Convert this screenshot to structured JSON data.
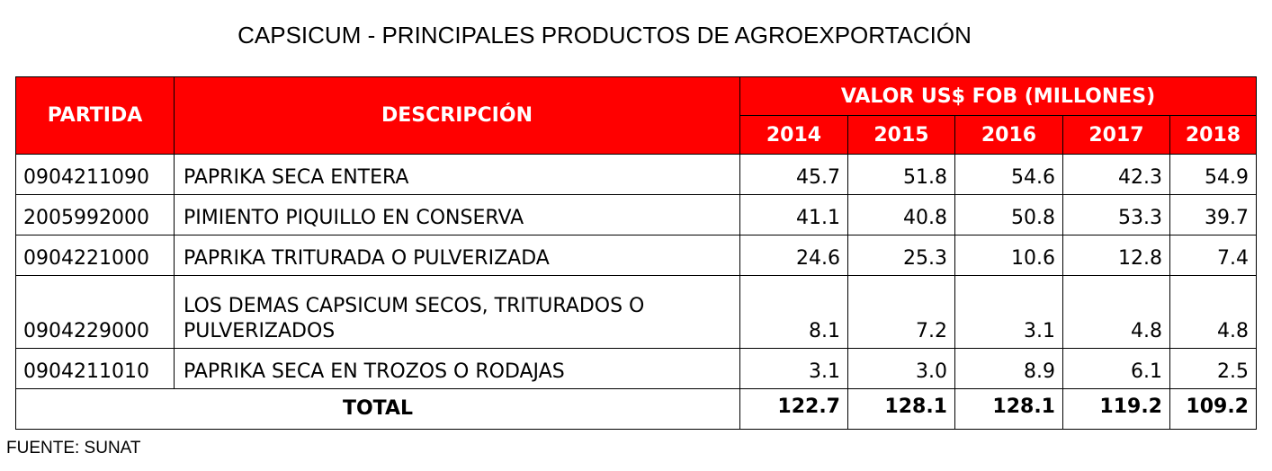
{
  "title": "CAPSICUM - PRINCIPALES PRODUCTOS DE AGROEXPORTACIÓN",
  "table": {
    "header_partida": "PARTIDA",
    "header_descripcion": "DESCRIPCIÓN",
    "header_valor": "VALOR US$ FOB (MILLONES)",
    "years": [
      "2014",
      "2015",
      "2016",
      "2017",
      "2018"
    ],
    "rows": [
      {
        "partida": "0904211090",
        "descripcion": "PAPRIKA SECA ENTERA",
        "values": [
          "45.7",
          "51.8",
          "54.6",
          "42.3",
          "54.9"
        ]
      },
      {
        "partida": "2005992000",
        "descripcion": "PIMIENTO PIQUILLO EN CONSERVA",
        "values": [
          "41.1",
          "40.8",
          "50.8",
          "53.3",
          "39.7"
        ]
      },
      {
        "partida": "0904221000",
        "descripcion": "PAPRIKA TRITURADA O PULVERIZADA",
        "values": [
          "24.6",
          "25.3",
          "10.6",
          "12.8",
          "7.4"
        ]
      },
      {
        "partida": "0904229000",
        "descripcion": "LOS DEMAS CAPSICUM SECOS, TRITURADOS O PULVERIZADOS",
        "values": [
          "8.1",
          "7.2",
          "3.1",
          "4.8",
          "4.8"
        ]
      },
      {
        "partida": "0904211010",
        "descripcion": "PAPRIKA SECA EN TROZOS O RODAJAS",
        "values": [
          "3.1",
          "3.0",
          "8.9",
          "6.1",
          "2.5"
        ]
      }
    ],
    "total_label": "TOTAL",
    "totals": [
      "122.7",
      "128.1",
      "128.1",
      "119.2",
      "109.2"
    ]
  },
  "source": "FUENTE: SUNAT",
  "colors": {
    "header_bg": "#ff0000",
    "header_text": "#ffffff"
  }
}
